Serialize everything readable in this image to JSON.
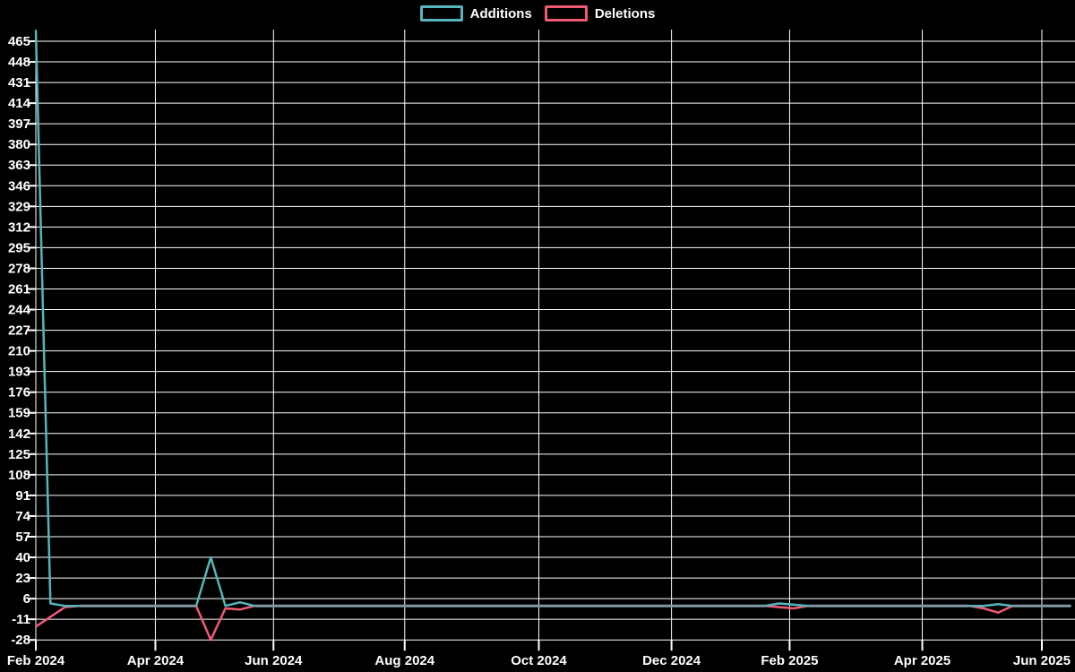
{
  "legend": {
    "additions_label": "Additions",
    "deletions_label": "Deletions"
  },
  "colors": {
    "background": "#000000",
    "grid": "#ffffff",
    "text": "#ffffff",
    "additions": "#54b6bc",
    "deletions": "#ee5a76",
    "overlap_baseline": "#7e99a4"
  },
  "chart_data": {
    "type": "line",
    "title": "",
    "grid": true,
    "legend_position": "top-center",
    "x_tick_labels": [
      "Feb 2024",
      "Apr 2024",
      "Jun 2024",
      "Aug 2024",
      "Oct 2024",
      "Dec 2024",
      "Feb 2025",
      "Apr 2025",
      "Jun 2025"
    ],
    "x_tick_weeks": [
      0,
      8.2,
      16.3,
      25.3,
      34.5,
      43.6,
      51.7,
      60.8,
      69
    ],
    "x_total_weeks": 71,
    "y_ticks": [
      465,
      448,
      431,
      414,
      397,
      380,
      363,
      346,
      329,
      312,
      295,
      278,
      261,
      244,
      227,
      210,
      193,
      176,
      159,
      142,
      125,
      108,
      91,
      74,
      57,
      40,
      23,
      6,
      -11,
      -28
    ],
    "ylim": [
      -31,
      475
    ],
    "series": [
      {
        "name": "Additions",
        "color": "#54b6bc",
        "values": [
          474,
          2,
          0,
          0,
          0,
          0,
          0,
          0,
          0,
          0,
          0,
          0,
          40,
          0,
          3,
          0,
          0,
          0,
          0,
          0,
          0,
          0,
          0,
          0,
          0,
          0,
          0,
          0,
          0,
          0,
          0,
          0,
          0,
          0,
          0,
          0,
          0,
          0,
          0,
          0,
          0,
          0,
          0,
          0,
          0,
          0,
          0,
          0,
          0,
          0,
          0,
          2,
          1,
          0,
          0,
          0,
          0,
          0,
          0,
          0,
          0,
          0,
          0,
          0,
          0,
          0,
          1.5,
          0,
          0,
          0,
          0,
          0
        ]
      },
      {
        "name": "Deletions",
        "color": "#ee5a76",
        "values": [
          -17,
          -9,
          -1,
          0,
          0,
          0,
          0,
          0,
          0,
          0,
          0,
          0,
          -28,
          -2,
          -3,
          0,
          0,
          0,
          0,
          0,
          0,
          0,
          0,
          0,
          0,
          0,
          0,
          0,
          0,
          0,
          0,
          0,
          0,
          0,
          0,
          0,
          0,
          0,
          0,
          0,
          0,
          0,
          0,
          0,
          0,
          0,
          0,
          0,
          0,
          0,
          0,
          -1,
          -2,
          0,
          0,
          0,
          0,
          0,
          0,
          0,
          0,
          0,
          0,
          0,
          0,
          -2,
          -5.5,
          0,
          0,
          0,
          0,
          0
        ]
      }
    ]
  }
}
